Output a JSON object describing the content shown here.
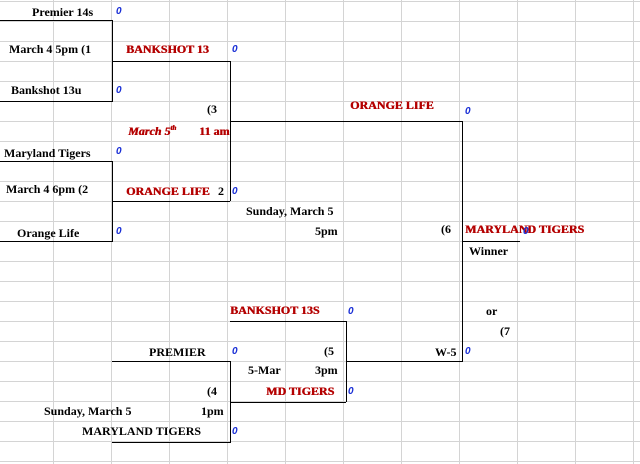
{
  "cells": {
    "r1_premier14s": "Premier 14s",
    "r1_match1_time": "March 4  5pm (1",
    "r1_bankshot13u": "Bankshot 13u",
    "r1_maryland_tigers": "Maryland Tigers",
    "r1_match2_time": "March 4   6pm (2",
    "r1_orange_life": "Orange Life",
    "r2_winner_bankshot13": "BANKSHOT 13",
    "r2_winner_orangelife": "ORANGE LIFE",
    "r2_winner_orangelife_suffix": "2",
    "r2_game3_no": "(3",
    "r2_game3_date": "March 5",
    "r2_game3_date_sup": "th",
    "r2_game3_time": "11 am",
    "semi_winner_orangelife": "ORANGE LIFE",
    "semi_date": "Sunday, March 5",
    "semi_time": "5pm",
    "final_game_no": "(6",
    "final_winner": "MARYLAND TIGERS",
    "winner_label": "Winner",
    "or_label": "or",
    "game7_no": "(7",
    "lower_bankshot13s": "BANKSHOT 13S",
    "lower_premier": "PREMIER",
    "lower_game5_no": "(5",
    "lower_game5_date": "5-Mar",
    "lower_game5_time": "3pm",
    "lower_w5": "W-5",
    "lower_game4_no": "(4",
    "lower_md_tigers": "MD TIGERS",
    "lower_game4_date": "Sunday, March 5",
    "lower_game4_time": "1pm",
    "lower_maryland_tigers": "MARYLAND TIGERS"
  },
  "scores": {
    "premier14s": "0",
    "match1": "0",
    "bankshot13u": "0",
    "bankshot13": "0",
    "orangelife_top": "0",
    "maryland_tigers": "0",
    "orangelife_r2": "0",
    "orange_life": "0",
    "final": "0",
    "or_side": "0",
    "bankshot13s": "0",
    "premier": "0",
    "w5": "0",
    "md_tigers": "0",
    "maryland_tigers_bottom": "0"
  },
  "colors": {
    "team_red": "#b40000",
    "score_blue": "#1a2fd6",
    "gridline": "#d4d4d4"
  }
}
